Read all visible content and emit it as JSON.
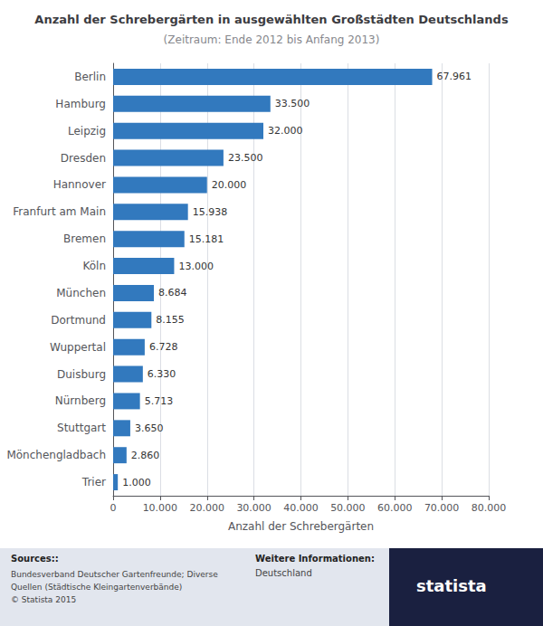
{
  "chart_data": {
    "type": "bar",
    "orientation": "horizontal",
    "title": "Anzahl der Schrebergärten in ausgewählten Großstädten Deutschlands",
    "subtitle": "(Zeitraum: Ende 2012 bis Anfang 2013)",
    "categories": [
      "Berlin",
      "Hamburg",
      "Leipzig",
      "Dresden",
      "Hannover",
      "Franfurt am Main",
      "Bremen",
      "Köln",
      "München",
      "Dortmund",
      "Wuppertal",
      "Duisburg",
      "Nürnberg",
      "Stuttgart",
      "Mönchengladbach",
      "Trier"
    ],
    "values": [
      67961,
      33500,
      32000,
      23500,
      20000,
      15938,
      15181,
      13000,
      8684,
      8155,
      6728,
      6330,
      5713,
      3650,
      2860,
      1000
    ],
    "value_labels": [
      "67.961",
      "33.500",
      "32.000",
      "23.500",
      "20.000",
      "15.938",
      "15.181",
      "13.000",
      "8.684",
      "8.155",
      "6.728",
      "6.330",
      "5.713",
      "3.650",
      "2.860",
      "1.000"
    ],
    "data_labels": true,
    "color": "#3279be",
    "xlabel": "Anzahl der Schrebergärten",
    "xlim": [
      0,
      80000
    ],
    "xticks": [
      0,
      {
        "value": 10000,
        "label": "10.000"
      },
      {
        "value": 20000,
        "label": "20.000"
      },
      {
        "value": 30000,
        "label": "30.000"
      },
      {
        "value": 40000,
        "label": "40.000"
      },
      {
        "value": 50000,
        "label": "50.000"
      },
      {
        "value": 60000,
        "label": "60.000"
      },
      {
        "value": 70000,
        "label": "70.000"
      },
      {
        "value": 80000,
        "label": "80.000"
      }
    ],
    "grid": true,
    "annotations": [
      "Sources::",
      "Bundesverband Deutscher Gartenfreunde; Diverse\nQuellen (Städtische Kleingartenverbände)\n© Statista 2015",
      "Weitere Informationen:",
      "Deutschland",
      "statista"
    ]
  }
}
